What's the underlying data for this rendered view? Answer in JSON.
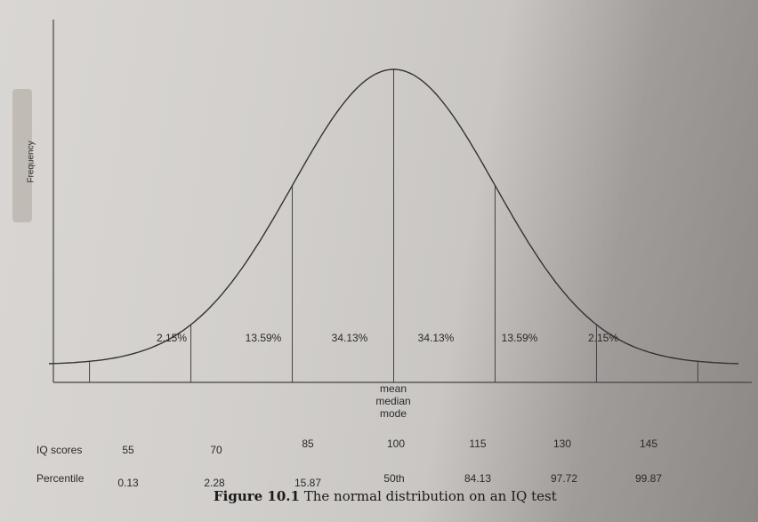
{
  "chart_data": {
    "type": "area",
    "ylabel": "Frequency",
    "distribution": {
      "mean": 100,
      "sd": 15
    },
    "xlim": [
      49,
      151
    ],
    "boundaries": [
      55,
      70,
      85,
      100,
      115,
      130,
      145
    ],
    "segment_percentages": [
      "2.15%",
      "13.59%",
      "34.13%",
      "34.13%",
      "13.59%",
      "2.15%"
    ],
    "center_labels": [
      "mean",
      "median",
      "mode"
    ],
    "rows": {
      "iq_label": "IQ scores",
      "iq_scores": [
        "55",
        "70",
        "85",
        "100",
        "115",
        "130",
        "145"
      ],
      "percentile_label": "Percentile",
      "percentiles": [
        "0.13",
        "2.28",
        "15.87",
        "50th",
        "84.13",
        "97.72",
        "99.87"
      ]
    }
  },
  "caption": {
    "figure": "Figure 10.1",
    "text": "The normal distribution on an IQ test"
  }
}
